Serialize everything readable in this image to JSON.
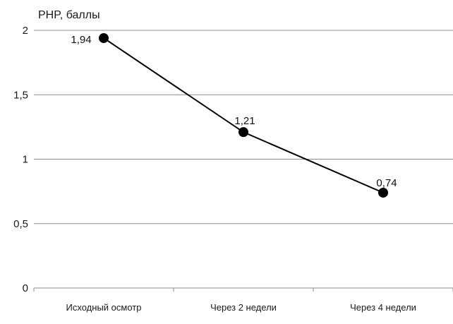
{
  "chart_data": {
    "type": "line",
    "ylabel": "PHP, баллы",
    "xlabel": "",
    "categories": [
      "Исходный осмотр",
      "Через 2 недели",
      "Через 4 недели"
    ],
    "series": [
      {
        "values": [
          1.94,
          1.21,
          0.74
        ],
        "data_labels": [
          "1,94",
          "1,21",
          "0,74"
        ]
      }
    ],
    "ylim": [
      0,
      2
    ],
    "yticks": [
      0,
      0.5,
      1,
      1.5,
      2
    ],
    "ytick_labels": [
      "0",
      "0,5",
      "1",
      "1,5",
      "2"
    ],
    "grid": true,
    "legend": "none",
    "colors": {
      "line": "#000000",
      "grid": "#8c8c8c"
    }
  }
}
